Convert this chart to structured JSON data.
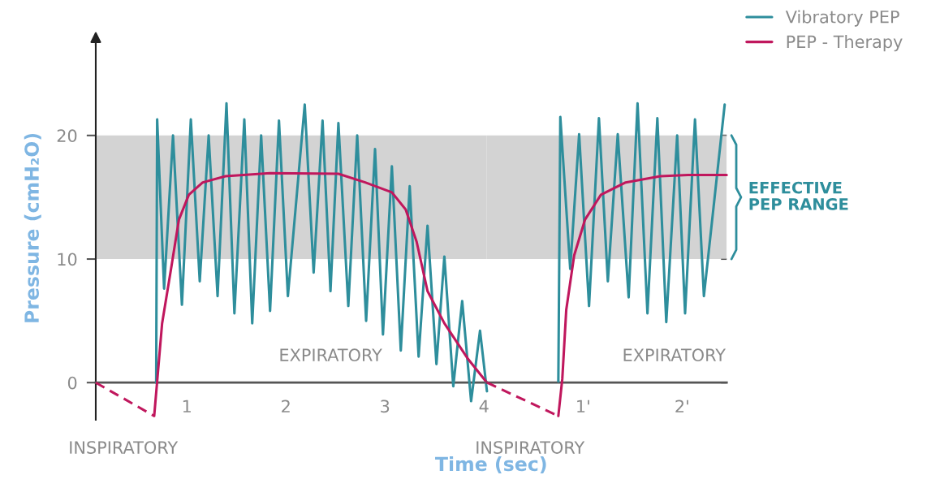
{
  "chart_data": [
    {
      "type": "line",
      "xlabel": "Time (sec)",
      "ylabel": "Pressure (cmH₂O)",
      "xlim": [
        0.08,
        4.03
      ],
      "ylim": [
        -3,
        28
      ],
      "xticks": [
        1,
        2,
        3,
        4
      ],
      "yticks": [
        0,
        10,
        20
      ],
      "series": [
        {
          "color": "#2e8e9c",
          "x": [
            0.69,
            0.7,
            0.77,
            0.86,
            0.95,
            1.04,
            1.13,
            1.22,
            1.31,
            1.4,
            1.48,
            1.58,
            1.66,
            1.75,
            1.84,
            1.93,
            2.02,
            2.19,
            2.28,
            2.37,
            2.45,
            2.53,
            2.63,
            2.72,
            2.81,
            2.9,
            2.98,
            3.07,
            3.16,
            3.25,
            3.34,
            3.43,
            3.52,
            3.6,
            3.69,
            3.78,
            3.87,
            3.96,
            4.03
          ],
          "values": [
            0,
            21.3,
            7.6,
            20,
            6.3,
            21.3,
            8.2,
            20,
            7.0,
            22.6,
            5.6,
            21.3,
            4.8,
            20,
            5.8,
            21.2,
            7.0,
            22.5,
            8.9,
            21.2,
            7.4,
            21.0,
            6.2,
            20,
            5.0,
            18.9,
            3.9,
            17.5,
            2.6,
            15.9,
            2.1,
            12.7,
            1.5,
            10.2,
            -0.3,
            6.6,
            -1.5,
            4.2,
            -0.7
          ]
        },
        {
          "color": "#c0175d",
          "x": [
            0.67,
            0.7,
            0.75,
            0.84,
            0.92,
            1.02,
            1.16,
            1.39,
            1.84,
            2.53,
            2.8,
            3.07,
            3.21,
            3.32,
            3.43,
            3.6,
            3.84,
            4.03
          ],
          "values": [
            -2.7,
            0.1,
            4.8,
            9.2,
            13.2,
            15.2,
            16.2,
            16.7,
            16.95,
            16.9,
            16.2,
            15.4,
            14.0,
            11.4,
            7.4,
            4.8,
            1.9,
            0
          ]
        },
        {
          "color": "#c0175d",
          "line_style": "dashed",
          "x": [
            0.08,
            0.67
          ],
          "values": [
            0,
            -2.7
          ]
        }
      ],
      "bands": [
        {
          "axis": "y",
          "from": 10,
          "to": 20,
          "color": "#c4c4c4"
        }
      ],
      "annotations": [
        "EXPIRATORY",
        "INSPIRATORY"
      ],
      "grid": false
    },
    {
      "type": "line",
      "xlim": [
        0.03,
        2.45
      ],
      "yticks": [
        0,
        10,
        20
      ],
      "tick_labels": "x",
      "xticks": [
        {
          "value": 1,
          "label": "1'"
        },
        {
          "value": 2,
          "label": "2'"
        }
      ],
      "series": [
        {
          "name": "Vibratory PEP",
          "color": "#2e8e9c",
          "x": [
            0.75,
            0.77,
            0.87,
            0.96,
            1.06,
            1.16,
            1.25,
            1.35,
            1.46,
            1.55,
            1.65,
            1.75,
            1.84,
            1.95,
            2.03,
            2.13,
            2.22,
            2.43
          ],
          "values": [
            0.1,
            21.5,
            9.2,
            20.1,
            6.2,
            21.4,
            8.2,
            20.1,
            6.9,
            22.6,
            5.6,
            21.4,
            4.9,
            20,
            5.6,
            21.3,
            7.0,
            22.5
          ]
        },
        {
          "name": "PEP - Therapy",
          "color": "#c0175d",
          "x": [
            0.75,
            0.79,
            0.83,
            0.91,
            1.02,
            1.18,
            1.43,
            1.78,
            2.06,
            2.45
          ],
          "values": [
            -2.7,
            0.3,
            5.9,
            10.3,
            13.2,
            15.2,
            16.2,
            16.7,
            16.8,
            16.8
          ]
        },
        {
          "color": "#c0175d",
          "line_style": "dashed",
          "x": [
            0.03,
            0.75
          ],
          "values": [
            0,
            -2.7
          ]
        }
      ],
      "bands": [
        {
          "axis": "y",
          "from": 10,
          "to": 20,
          "label": "EFFECTIVE\nPEP RANGE",
          "color": "#c4c4c4"
        }
      ],
      "annotations": [
        "EXPIRATORY",
        "INSPIRATORY"
      ],
      "legend": "top right",
      "grid": false
    }
  ]
}
